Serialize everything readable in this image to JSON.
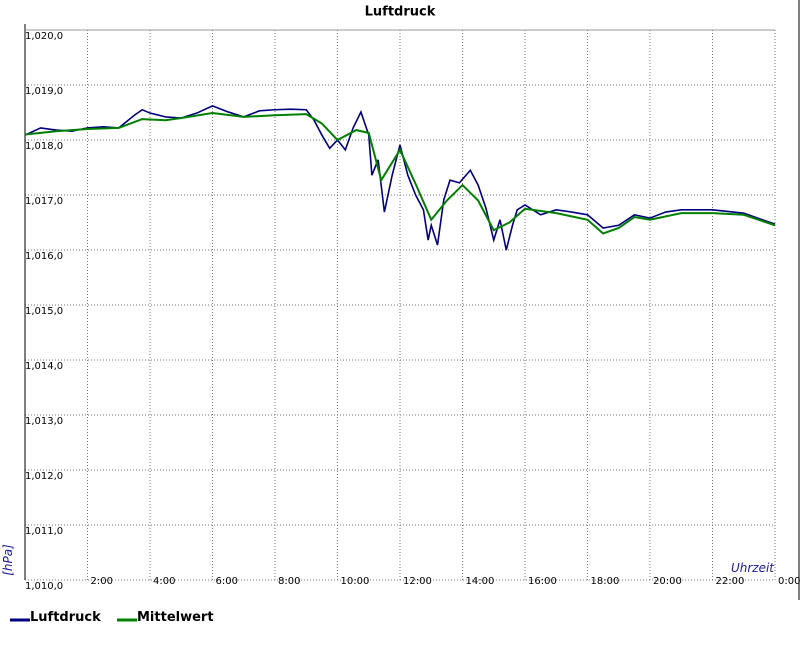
{
  "chart_data": {
    "type": "line",
    "title": "Luftdruck",
    "y_label": "[hPa]",
    "x_label": "Uhrzeit",
    "xlim": [
      0,
      24
    ],
    "ylim": [
      1010,
      1020
    ],
    "grid": true,
    "legend": "bottom-left",
    "xticks": [
      {
        "value": 2,
        "label": "2:00"
      },
      {
        "value": 4,
        "label": "4:00"
      },
      {
        "value": 6,
        "label": "6:00"
      },
      {
        "value": 8,
        "label": "8:00"
      },
      {
        "value": 10,
        "label": "10:00"
      },
      {
        "value": 12,
        "label": "12:00"
      },
      {
        "value": 14,
        "label": "14:00"
      },
      {
        "value": 16,
        "label": "16:00"
      },
      {
        "value": 18,
        "label": "18:00"
      },
      {
        "value": 20,
        "label": "20:00"
      },
      {
        "value": 22,
        "label": "22:00"
      },
      {
        "value": 24,
        "label": "0:00"
      }
    ],
    "yticks": [
      {
        "value": 1010,
        "label": "1,010,0"
      },
      {
        "value": 1011,
        "label": "1,011,0"
      },
      {
        "value": 1012,
        "label": "1,012,0"
      },
      {
        "value": 1013,
        "label": "1,013,0"
      },
      {
        "value": 1014,
        "label": "1,014,0"
      },
      {
        "value": 1015,
        "label": "1,015,0"
      },
      {
        "value": 1016,
        "label": "1,016,0"
      },
      {
        "value": 1017,
        "label": "1,017,0"
      },
      {
        "value": 1018,
        "label": "1,018,0"
      },
      {
        "value": 1019,
        "label": "1,019,0"
      },
      {
        "value": 1020,
        "label": "1,020,0"
      }
    ],
    "series": [
      {
        "name": "Luftdruck",
        "color": "#000080",
        "x": [
          0,
          0.5,
          1,
          1.5,
          2,
          2.5,
          3,
          3.5,
          3.75,
          4,
          4.5,
          5,
          5.5,
          6,
          6.5,
          7,
          7.5,
          8,
          8.5,
          9,
          9.25,
          9.5,
          9.75,
          10,
          10.25,
          10.5,
          10.75,
          11,
          11.1,
          11.3,
          11.5,
          11.75,
          12,
          12.25,
          12.5,
          12.75,
          12.9,
          13,
          13.2,
          13.4,
          13.6,
          13.9,
          14.25,
          14.5,
          14.75,
          15,
          15.2,
          15.4,
          15.6,
          15.75,
          16,
          16.5,
          17,
          17.5,
          18,
          18.5,
          19,
          19.5,
          20,
          20.5,
          21,
          22,
          23,
          24
        ],
        "values": [
          1018.09,
          1018.22,
          1018.18,
          1018.16,
          1018.22,
          1018.24,
          1018.22,
          1018.45,
          1018.55,
          1018.49,
          1018.42,
          1018.4,
          1018.49,
          1018.62,
          1018.51,
          1018.42,
          1018.53,
          1018.55,
          1018.56,
          1018.55,
          1018.36,
          1018.09,
          1017.85,
          1018.0,
          1017.82,
          1018.22,
          1018.51,
          1018.09,
          1017.36,
          1017.64,
          1016.69,
          1017.36,
          1017.91,
          1017.36,
          1017.0,
          1016.73,
          1016.18,
          1016.45,
          1016.09,
          1016.91,
          1017.27,
          1017.22,
          1017.45,
          1017.18,
          1016.76,
          1016.18,
          1016.55,
          1016.0,
          1016.45,
          1016.73,
          1016.82,
          1016.64,
          1016.73,
          1016.69,
          1016.64,
          1016.4,
          1016.45,
          1016.64,
          1016.58,
          1016.69,
          1016.73,
          1016.73,
          1016.67,
          1016.47
        ]
      },
      {
        "name": "Mittelwert",
        "color": "#008000",
        "x": [
          0,
          1,
          2,
          3,
          3.75,
          4.5,
          5,
          6,
          7,
          8,
          9,
          9.5,
          10,
          10.6,
          11,
          11.4,
          12,
          12.5,
          13,
          13.5,
          14,
          14.5,
          15,
          15.5,
          16,
          17,
          18,
          18.5,
          19,
          19.5,
          20,
          21,
          22,
          23,
          24
        ],
        "values": [
          1018.1,
          1018.16,
          1018.2,
          1018.22,
          1018.38,
          1018.36,
          1018.4,
          1018.49,
          1018.42,
          1018.45,
          1018.47,
          1018.3,
          1018.0,
          1018.18,
          1018.13,
          1017.27,
          1017.82,
          1017.2,
          1016.55,
          1016.9,
          1017.18,
          1016.9,
          1016.36,
          1016.5,
          1016.75,
          1016.67,
          1016.55,
          1016.3,
          1016.4,
          1016.6,
          1016.55,
          1016.67,
          1016.67,
          1016.64,
          1016.45
        ]
      }
    ]
  }
}
